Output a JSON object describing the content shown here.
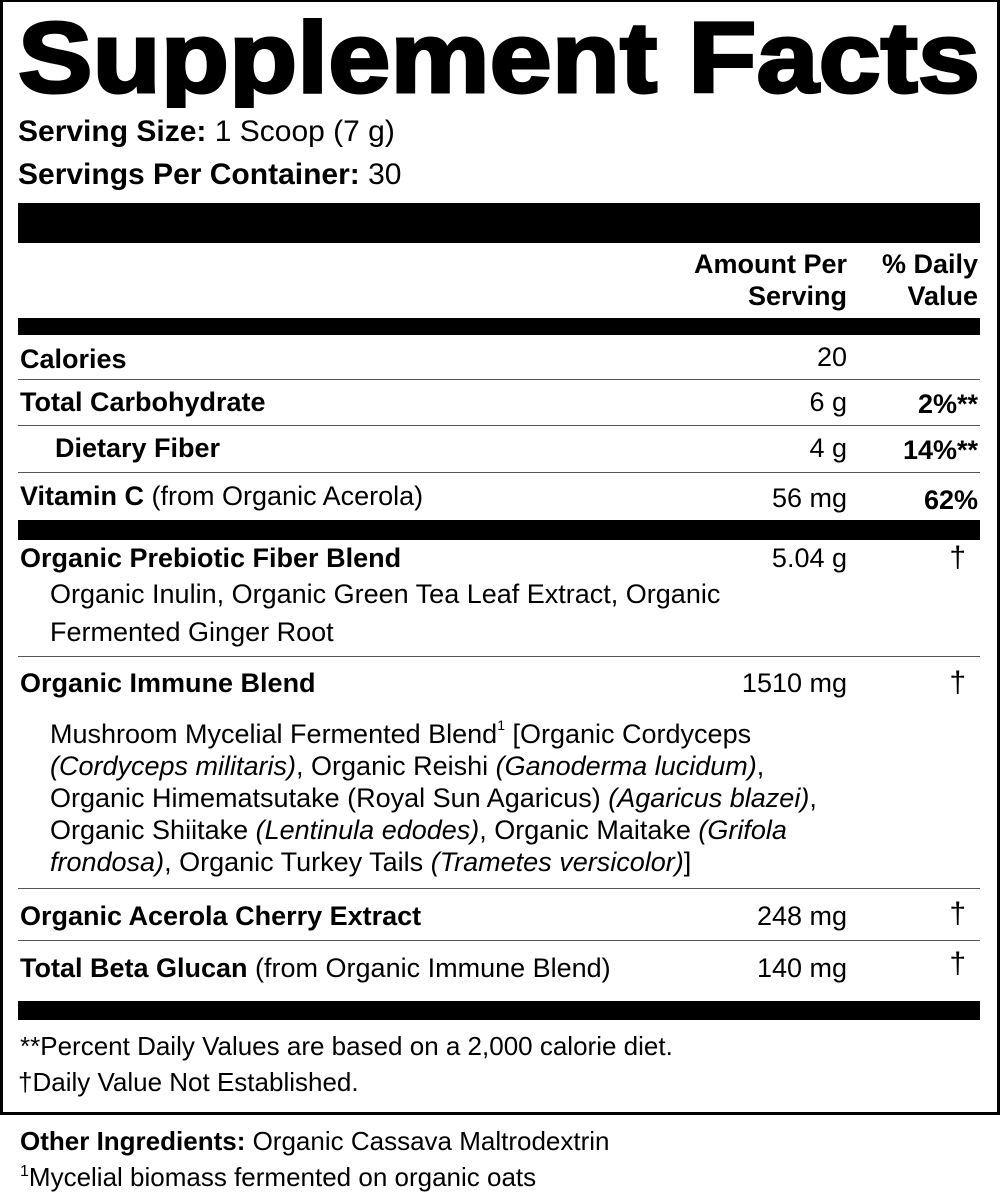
{
  "title": "Supplement Facts",
  "serving": {
    "size_label": "Serving Size:",
    "size_value": " 1 Scoop (7 g)",
    "per_container_label": "Servings Per Container:",
    "per_container_value": " 30"
  },
  "header": {
    "amount_line1": "Amount Per",
    "amount_line2": "Serving",
    "dv_line1": "% Daily",
    "dv_line2": "Value"
  },
  "rows": [
    {
      "name": "Calories",
      "amount": "20",
      "dv": ""
    },
    {
      "name": "Total Carbohydrate",
      "amount": "6 g",
      "dv": "2%**"
    },
    {
      "name": "Dietary Fiber",
      "amount": "4 g",
      "dv": "14%**"
    },
    {
      "name": "Vitamin C",
      "note": " (from Organic Acerola)",
      "amount": "56 mg",
      "dv": "62%"
    }
  ],
  "blends": {
    "prebiotic": {
      "name": "Organic Prebiotic Fiber Blend",
      "amount": "5.04 g",
      "dv": "†",
      "line1": "Organic Inulin, Organic Green Tea Leaf Extract, Organic",
      "line2": "Fermented Ginger Root"
    },
    "immune": {
      "name": "Organic Immune Blend",
      "amount": "1510 mg",
      "dv": "†",
      "p": [
        "Mushroom Mycelial Fermented Blend",
        "1",
        " [Organic Cordyceps",
        "(Cordyceps militaris)",
        ", Organic Reishi ",
        "(Ganoderma lucidum)",
        ",",
        "Organic Himematsutake (Royal Sun Agaricus) ",
        "(Agaricus blazei)",
        ",",
        "Organic Shiitake ",
        "(Lentinula edodes)",
        ", Organic Maitake ",
        "(Grifola",
        "frondosa)",
        ", Organic Turkey Tails ",
        "(Trametes versicolor)",
        "]"
      ]
    },
    "acerola": {
      "name": "Organic Acerola Cherry Extract",
      "amount": "248 mg",
      "dv": "†"
    },
    "beta": {
      "name": "Total Beta Glucan",
      "note": " (from Organic Immune Blend)",
      "amount": "140 mg",
      "dv": "†"
    }
  },
  "footnotes": {
    "dv_note": "**Percent Daily Values are based on a 2,000 calorie diet.",
    "dagger": "†",
    "dagger_note": "Daily Value Not Established."
  },
  "other": {
    "label": "Other Ingredients:",
    "value": " Organic Cassava Maltrodextrin",
    "fn_mark": "1",
    "fn_text": "Mycelial biomass fermented on organic oats"
  }
}
